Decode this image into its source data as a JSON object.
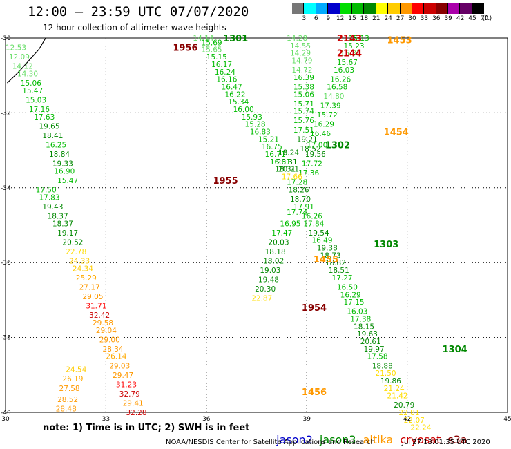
{
  "header": {
    "title": "12:00 – 23:59 UTC 07/07/2020",
    "subtitle": "12 hour collection of altimeter wave heights"
  },
  "legend": {
    "colors": [
      "#777777",
      "#00ffff",
      "#00aaff",
      "#0000cc",
      "#00dd00",
      "#00bb00",
      "#008800",
      "#ffff00",
      "#ffcc00",
      "#ff9900",
      "#ff0000",
      "#cc0000",
      "#880000",
      "#aa00aa",
      "#660066",
      "#000000"
    ],
    "labels": [
      "3",
      "6",
      "9",
      "12",
      "15",
      "18",
      "21",
      "24",
      "27",
      "30",
      "33",
      "36",
      "39",
      "42",
      "45",
      "70",
      "(ft)"
    ]
  },
  "footer": {
    "note": "note: 1) Time is in UTC; 2) SWH is in feet",
    "missions": [
      {
        "name": "jason2",
        "color": "#0000cc"
      },
      {
        "name": "jason3",
        "color": "#008800"
      },
      {
        "name": "altika",
        "color": "#ff9900"
      },
      {
        "name": "cryosat",
        "color": "#cc0000"
      },
      {
        "name": "s3a",
        "color": "#880000"
      }
    ],
    "credit": "NOAA/NESDIS Center for Satellite Applications and Research",
    "timestamp": "Jul 27 13:01:35 UTC 2020"
  },
  "map": {
    "lon_range": [
      30,
      45
    ],
    "lat_range": [
      -40,
      -30
    ],
    "x_ticks": [
      "30",
      "33",
      "36",
      "39",
      "42",
      "45"
    ],
    "y_ticks": [
      "-30",
      "-32",
      "-34",
      "-36",
      "-38",
      "-40"
    ],
    "coastline": [
      [
        30.05,
        -31.2
      ],
      [
        30.4,
        -30.9
      ],
      [
        30.8,
        -30.5
      ],
      [
        31.0,
        -30.3
      ],
      [
        31.2,
        -30.0
      ]
    ],
    "pass_labels": [
      {
        "text": "1301",
        "lon": 36.5,
        "lat": -30.0,
        "color": "#008800"
      },
      {
        "text": "1956",
        "lon": 35.0,
        "lat": -30.25,
        "color": "#880000"
      },
      {
        "text": "2143",
        "lon": 39.9,
        "lat": -30.0,
        "color": "#cc0000"
      },
      {
        "text": "2144",
        "lon": 39.9,
        "lat": -30.4,
        "color": "#cc0000"
      },
      {
        "text": "1453",
        "lon": 41.4,
        "lat": -30.05,
        "color": "#ff9900"
      },
      {
        "text": "1454",
        "lon": 41.3,
        "lat": -32.5,
        "color": "#ff9900"
      },
      {
        "text": "1302",
        "lon": 39.55,
        "lat": -32.85,
        "color": "#008800"
      },
      {
        "text": "1955",
        "lon": 36.2,
        "lat": -33.8,
        "color": "#880000"
      },
      {
        "text": "1303",
        "lon": 41.0,
        "lat": -35.5,
        "color": "#008800"
      },
      {
        "text": "1455",
        "lon": 39.2,
        "lat": -35.9,
        "color": "#ff9900"
      },
      {
        "text": "1954",
        "lon": 38.85,
        "lat": -37.2,
        "color": "#880000"
      },
      {
        "text": "1304",
        "lon": 43.05,
        "lat": -38.3,
        "color": "#008800"
      },
      {
        "text": "1456",
        "lon": 38.85,
        "lat": -39.45,
        "color": "#ff9900"
      }
    ],
    "values": [
      {
        "text": "14.14",
        "lon": 35.6,
        "lat": -30.0,
        "color": "#66dd66"
      },
      {
        "text": "15.69",
        "lon": 35.85,
        "lat": -30.12,
        "color": "#00bb00"
      },
      {
        "text": "15.65",
        "lon": 35.85,
        "lat": -30.3,
        "color": "#66dd66"
      },
      {
        "text": "15.15",
        "lon": 36.0,
        "lat": -30.5,
        "color": "#00bb00"
      },
      {
        "text": "16.17",
        "lon": 36.15,
        "lat": -30.7,
        "color": "#00bb00"
      },
      {
        "text": "16.24",
        "lon": 36.25,
        "lat": -30.9,
        "color": "#00bb00"
      },
      {
        "text": "16.16",
        "lon": 36.3,
        "lat": -31.1,
        "color": "#00bb00"
      },
      {
        "text": "16.47",
        "lon": 36.45,
        "lat": -31.3,
        "color": "#00bb00"
      },
      {
        "text": "16.22",
        "lon": 36.55,
        "lat": -31.5,
        "color": "#00bb00"
      },
      {
        "text": "15.34",
        "lon": 36.65,
        "lat": -31.7,
        "color": "#00bb00"
      },
      {
        "text": "16.00",
        "lon": 36.8,
        "lat": -31.9,
        "color": "#00bb00"
      },
      {
        "text": "15.93",
        "lon": 37.05,
        "lat": -32.1,
        "color": "#00bb00"
      },
      {
        "text": "15.28",
        "lon": 37.15,
        "lat": -32.3,
        "color": "#00bb00"
      },
      {
        "text": "16.83",
        "lon": 37.3,
        "lat": -32.5,
        "color": "#00bb00"
      },
      {
        "text": "15.21",
        "lon": 37.55,
        "lat": -32.7,
        "color": "#00bb00"
      },
      {
        "text": "16.75",
        "lon": 37.65,
        "lat": -32.9,
        "color": "#00bb00"
      },
      {
        "text": "16.71",
        "lon": 37.75,
        "lat": -33.1,
        "color": "#00bb00"
      },
      {
        "text": "16.81",
        "lon": 37.9,
        "lat": -33.3,
        "color": "#00bb00"
      },
      {
        "text": "18.31",
        "lon": 38.05,
        "lat": -33.5,
        "color": "#008800"
      },
      {
        "text": "12.53",
        "lon": 30.0,
        "lat": -30.25,
        "color": "#66dd66"
      },
      {
        "text": "12.09",
        "lon": 30.1,
        "lat": -30.5,
        "color": "#66dd66"
      },
      {
        "text": "14.12",
        "lon": 30.2,
        "lat": -30.75,
        "color": "#66dd66"
      },
      {
        "text": "14.30",
        "lon": 30.35,
        "lat": -30.95,
        "color": "#66dd66"
      },
      {
        "text": "15.06",
        "lon": 30.45,
        "lat": -31.2,
        "color": "#00bb00"
      },
      {
        "text": "15.47",
        "lon": 30.5,
        "lat": -31.4,
        "color": "#00bb00"
      },
      {
        "text": "15.03",
        "lon": 30.6,
        "lat": -31.65,
        "color": "#00bb00"
      },
      {
        "text": "17.16",
        "lon": 30.7,
        "lat": -31.9,
        "color": "#00bb00"
      },
      {
        "text": "17.63",
        "lon": 30.85,
        "lat": -32.1,
        "color": "#00bb00"
      },
      {
        "text": "19.65",
        "lon": 31.0,
        "lat": -32.35,
        "color": "#008800"
      },
      {
        "text": "18.41",
        "lon": 31.1,
        "lat": -32.6,
        "color": "#008800"
      },
      {
        "text": "16.25",
        "lon": 31.2,
        "lat": -32.85,
        "color": "#00bb00"
      },
      {
        "text": "18.84",
        "lon": 31.3,
        "lat": -33.1,
        "color": "#008800"
      },
      {
        "text": "19.33",
        "lon": 31.4,
        "lat": -33.35,
        "color": "#008800"
      },
      {
        "text": "16.90",
        "lon": 31.45,
        "lat": -33.55,
        "color": "#00bb00"
      },
      {
        "text": "15.47",
        "lon": 31.55,
        "lat": -33.8,
        "color": "#00bb00"
      },
      {
        "text": "17.50",
        "lon": 30.9,
        "lat": -34.05,
        "color": "#00bb00"
      },
      {
        "text": "17.83",
        "lon": 31.0,
        "lat": -34.25,
        "color": "#00bb00"
      },
      {
        "text": "19.43",
        "lon": 31.1,
        "lat": -34.5,
        "color": "#008800"
      },
      {
        "text": "18.37",
        "lon": 31.25,
        "lat": -34.75,
        "color": "#008800"
      },
      {
        "text": "18.37",
        "lon": 31.4,
        "lat": -34.95,
        "color": "#008800"
      },
      {
        "text": "19.17",
        "lon": 31.55,
        "lat": -35.2,
        "color": "#008800"
      },
      {
        "text": "20.52",
        "lon": 31.7,
        "lat": -35.45,
        "color": "#008800"
      },
      {
        "text": "22.78",
        "lon": 31.8,
        "lat": -35.7,
        "color": "#ffdd00"
      },
      {
        "text": "24.33",
        "lon": 31.9,
        "lat": -35.95,
        "color": "#ffcc00"
      },
      {
        "text": "24.34",
        "lon": 32.0,
        "lat": -36.15,
        "color": "#ffcc00"
      },
      {
        "text": "25.29",
        "lon": 32.1,
        "lat": -36.4,
        "color": "#ffaa00"
      },
      {
        "text": "27.17",
        "lon": 32.2,
        "lat": -36.65,
        "color": "#ff9900"
      },
      {
        "text": "29.05",
        "lon": 32.3,
        "lat": -36.9,
        "color": "#ff9900"
      },
      {
        "text": "31.71",
        "lon": 32.4,
        "lat": -37.15,
        "color": "#ff0000"
      },
      {
        "text": "32.42",
        "lon": 32.5,
        "lat": -37.4,
        "color": "#cc0000"
      },
      {
        "text": "29.58",
        "lon": 32.6,
        "lat": -37.6,
        "color": "#ff9900"
      },
      {
        "text": "29.04",
        "lon": 32.7,
        "lat": -37.8,
        "color": "#ff9900"
      },
      {
        "text": "29.00",
        "lon": 32.8,
        "lat": -38.05,
        "color": "#ff9900"
      },
      {
        "text": "28.34",
        "lon": 32.9,
        "lat": -38.3,
        "color": "#ff9900"
      },
      {
        "text": "26.14",
        "lon": 33.0,
        "lat": -38.5,
        "color": "#ffaa00"
      },
      {
        "text": "29.03",
        "lon": 33.1,
        "lat": -38.75,
        "color": "#ff9900"
      },
      {
        "text": "29.47",
        "lon": 33.2,
        "lat": -39.0,
        "color": "#ff9900"
      },
      {
        "text": "31.23",
        "lon": 33.3,
        "lat": -39.25,
        "color": "#ff0000"
      },
      {
        "text": "32.79",
        "lon": 33.4,
        "lat": -39.5,
        "color": "#cc0000"
      },
      {
        "text": "29.41",
        "lon": 33.5,
        "lat": -39.75,
        "color": "#ff9900"
      },
      {
        "text": "32.28",
        "lon": 33.6,
        "lat": -40.0,
        "color": "#cc0000"
      },
      {
        "text": "24.54",
        "lon": 31.8,
        "lat": -38.85,
        "color": "#ffcc00"
      },
      {
        "text": "26.19",
        "lon": 31.7,
        "lat": -39.1,
        "color": "#ffaa00"
      },
      {
        "text": "27.58",
        "lon": 31.6,
        "lat": -39.35,
        "color": "#ff9900"
      },
      {
        "text": "28.52",
        "lon": 31.55,
        "lat": -39.65,
        "color": "#ff9900"
      },
      {
        "text": "28.48",
        "lon": 31.5,
        "lat": -39.9,
        "color": "#ff9900"
      },
      {
        "text": "14.28",
        "lon": 38.4,
        "lat": -30.0,
        "color": "#66dd66"
      },
      {
        "text": "14.55",
        "lon": 38.5,
        "lat": -30.2,
        "color": "#66dd66"
      },
      {
        "text": "14.29",
        "lon": 38.5,
        "lat": -30.4,
        "color": "#66dd66"
      },
      {
        "text": "14.79",
        "lon": 38.55,
        "lat": -30.6,
        "color": "#66dd66"
      },
      {
        "text": "14.72",
        "lon": 38.55,
        "lat": -30.85,
        "color": "#66dd66"
      },
      {
        "text": "16.39",
        "lon": 38.6,
        "lat": -31.05,
        "color": "#00bb00"
      },
      {
        "text": "15.38",
        "lon": 38.6,
        "lat": -31.3,
        "color": "#00bb00"
      },
      {
        "text": "15.06",
        "lon": 38.6,
        "lat": -31.5,
        "color": "#00bb00"
      },
      {
        "text": "15.71",
        "lon": 38.6,
        "lat": -31.75,
        "color": "#00bb00"
      },
      {
        "text": "15.74",
        "lon": 38.6,
        "lat": -31.95,
        "color": "#00bb00"
      },
      {
        "text": "15.76",
        "lon": 38.6,
        "lat": -32.2,
        "color": "#00bb00"
      },
      {
        "text": "17.51",
        "lon": 38.6,
        "lat": -32.45,
        "color": "#00bb00"
      },
      {
        "text": "19.21",
        "lon": 38.7,
        "lat": -32.7,
        "color": "#008800"
      },
      {
        "text": "18.52",
        "lon": 38.8,
        "lat": -32.95,
        "color": "#008800"
      },
      {
        "text": "15.13",
        "lon": 40.25,
        "lat": -30.0,
        "color": "#00bb00"
      },
      {
        "text": "15.23",
        "lon": 40.1,
        "lat": -30.2,
        "color": "#00bb00"
      },
      {
        "text": "15.35",
        "lon": 40.0,
        "lat": -30.4,
        "color": "#66dd66"
      },
      {
        "text": "15.67",
        "lon": 39.9,
        "lat": -30.65,
        "color": "#00bb00"
      },
      {
        "text": "16.03",
        "lon": 39.8,
        "lat": -30.85,
        "color": "#00bb00"
      },
      {
        "text": "16.26",
        "lon": 39.7,
        "lat": -31.1,
        "color": "#00bb00"
      },
      {
        "text": "16.58",
        "lon": 39.6,
        "lat": -31.3,
        "color": "#00bb00"
      },
      {
        "text": "14.80",
        "lon": 39.5,
        "lat": -31.55,
        "color": "#66dd66"
      },
      {
        "text": "17.39",
        "lon": 39.4,
        "lat": -31.8,
        "color": "#00bb00"
      },
      {
        "text": "15.72",
        "lon": 39.3,
        "lat": -32.05,
        "color": "#00bb00"
      },
      {
        "text": "16.29",
        "lon": 39.2,
        "lat": -32.3,
        "color": "#00bb00"
      },
      {
        "text": "16.46",
        "lon": 39.1,
        "lat": -32.55,
        "color": "#00bb00"
      },
      {
        "text": "17.00",
        "lon": 39.0,
        "lat": -32.85,
        "color": "#00bb00"
      },
      {
        "text": "19.56",
        "lon": 38.95,
        "lat": -33.1,
        "color": "#008800"
      },
      {
        "text": "17.72",
        "lon": 38.85,
        "lat": -33.35,
        "color": "#00bb00"
      },
      {
        "text": "17.36",
        "lon": 38.75,
        "lat": -33.6,
        "color": "#00bb00"
      },
      {
        "text": "18.24",
        "lon": 38.15,
        "lat": -33.05,
        "color": "#008800"
      },
      {
        "text": "20.31",
        "lon": 38.1,
        "lat": -33.3,
        "color": "#008800"
      },
      {
        "text": "20.71",
        "lon": 38.15,
        "lat": -33.5,
        "color": "#008800"
      },
      {
        "text": "17.66",
        "lon": 38.25,
        "lat": -33.7,
        "color": "#ffdd00"
      },
      {
        "text": "17.28",
        "lon": 38.4,
        "lat": -33.85,
        "color": "#00bb00"
      },
      {
        "text": "18.26",
        "lon": 38.45,
        "lat": -34.05,
        "color": "#008800"
      },
      {
        "text": "18.70",
        "lon": 38.5,
        "lat": -34.3,
        "color": "#008800"
      },
      {
        "text": "17.91",
        "lon": 38.6,
        "lat": -34.5,
        "color": "#00bb00"
      },
      {
        "text": "17.74",
        "lon": 38.4,
        "lat": -34.65,
        "color": "#00bb00"
      },
      {
        "text": "16.26",
        "lon": 38.85,
        "lat": -34.75,
        "color": "#00bb00"
      },
      {
        "text": "17.84",
        "lon": 38.9,
        "lat": -34.95,
        "color": "#00bb00"
      },
      {
        "text": "16.95",
        "lon": 38.2,
        "lat": -34.95,
        "color": "#00bb00"
      },
      {
        "text": "19.54",
        "lon": 39.05,
        "lat": -35.2,
        "color": "#008800"
      },
      {
        "text": "17.47",
        "lon": 37.95,
        "lat": -35.2,
        "color": "#00bb00"
      },
      {
        "text": "16.49",
        "lon": 39.15,
        "lat": -35.4,
        "color": "#00bb00"
      },
      {
        "text": "20.03",
        "lon": 37.85,
        "lat": -35.45,
        "color": "#008800"
      },
      {
        "text": "19.38",
        "lon": 39.3,
        "lat": -35.6,
        "color": "#008800"
      },
      {
        "text": "18.18",
        "lon": 37.75,
        "lat": -35.7,
        "color": "#008800"
      },
      {
        "text": "18.73",
        "lon": 39.4,
        "lat": -35.8,
        "color": "#008800"
      },
      {
        "text": "18.02",
        "lon": 37.7,
        "lat": -35.95,
        "color": "#008800"
      },
      {
        "text": "18.82",
        "lon": 39.55,
        "lat": -36.0,
        "color": "#008800"
      },
      {
        "text": "18.51",
        "lon": 39.65,
        "lat": -36.2,
        "color": "#008800"
      },
      {
        "text": "19.03",
        "lon": 37.6,
        "lat": -36.2,
        "color": "#008800"
      },
      {
        "text": "17.27",
        "lon": 39.75,
        "lat": -36.4,
        "color": "#00bb00"
      },
      {
        "text": "19.48",
        "lon": 37.55,
        "lat": -36.45,
        "color": "#008800"
      },
      {
        "text": "16.50",
        "lon": 39.9,
        "lat": -36.65,
        "color": "#00bb00"
      },
      {
        "text": "20.30",
        "lon": 37.45,
        "lat": -36.7,
        "color": "#008800"
      },
      {
        "text": "16.29",
        "lon": 40.0,
        "lat": -36.85,
        "color": "#00bb00"
      },
      {
        "text": "22.87",
        "lon": 37.35,
        "lat": -36.95,
        "color": "#ffdd00"
      },
      {
        "text": "17.15",
        "lon": 40.1,
        "lat": -37.05,
        "color": "#00bb00"
      },
      {
        "text": "16.03",
        "lon": 40.2,
        "lat": -37.3,
        "color": "#00bb00"
      },
      {
        "text": "17.38",
        "lon": 40.3,
        "lat": -37.5,
        "color": "#00bb00"
      },
      {
        "text": "18.15",
        "lon": 40.4,
        "lat": -37.7,
        "color": "#008800"
      },
      {
        "text": "19.63",
        "lon": 40.5,
        "lat": -37.9,
        "color": "#008800"
      },
      {
        "text": "20.61",
        "lon": 40.6,
        "lat": -38.1,
        "color": "#008800"
      },
      {
        "text": "19.97",
        "lon": 40.7,
        "lat": -38.3,
        "color": "#008800"
      },
      {
        "text": "17.58",
        "lon": 40.8,
        "lat": -38.5,
        "color": "#00bb00"
      },
      {
        "text": "18.88",
        "lon": 40.95,
        "lat": -38.75,
        "color": "#008800"
      },
      {
        "text": "21.50",
        "lon": 41.05,
        "lat": -38.95,
        "color": "#ffdd00"
      },
      {
        "text": "19.86",
        "lon": 41.2,
        "lat": -39.15,
        "color": "#008800"
      },
      {
        "text": "21.24",
        "lon": 41.3,
        "lat": -39.35,
        "color": "#ffdd00"
      },
      {
        "text": "21.42",
        "lon": 41.4,
        "lat": -39.55,
        "color": "#ffdd00"
      },
      {
        "text": "20.79",
        "lon": 41.6,
        "lat": -39.8,
        "color": "#008800"
      },
      {
        "text": "22.81",
        "lon": 41.75,
        "lat": -40.0,
        "color": "#ffdd00"
      },
      {
        "text": "22.07",
        "lon": 41.9,
        "lat": -40.2,
        "color": "#ffdd00"
      },
      {
        "text": "22.24",
        "lon": 42.1,
        "lat": -40.4,
        "color": "#ffdd00"
      }
    ]
  }
}
